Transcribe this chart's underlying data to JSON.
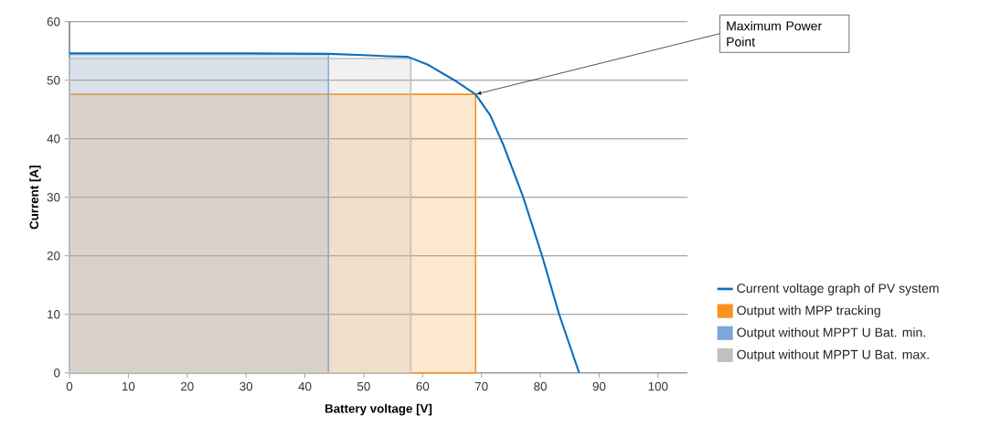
{
  "chart_data": {
    "type": "line",
    "xlabel": "Battery voltage [V]",
    "ylabel": "Current [A]",
    "xlim": [
      0,
      105
    ],
    "ylim": [
      0,
      60
    ],
    "xticks": [
      0,
      10,
      20,
      30,
      40,
      50,
      60,
      70,
      80,
      90,
      100
    ],
    "yticks": [
      0,
      10,
      20,
      30,
      40,
      50,
      60
    ],
    "grid": "y",
    "legend": "right",
    "annotations": [
      {
        "text": "Maximum Power Point",
        "x": 69,
        "y": 47.6
      }
    ],
    "series": [
      {
        "name": "Current voltage graph of PV system",
        "color": "#0a6ebd",
        "x": [
          0,
          30,
          44,
          50,
          54,
          57.5,
          61,
          65.4,
          69,
          71.5,
          73.7,
          77.1,
          80.3,
          83.2,
          86.6
        ],
        "values": [
          54.6,
          54.6,
          54.5,
          54.3,
          54.1,
          54.0,
          52.6,
          50,
          47.6,
          44,
          39,
          30,
          20,
          10,
          0
        ]
      },
      {
        "name": "Output with MPP tracking",
        "type": "area",
        "color": "#f7931e",
        "x": [
          0,
          69
        ],
        "values": [
          47.6,
          47.6
        ]
      },
      {
        "name": "Output without MPPT U Bat. min.",
        "type": "area",
        "color": "#7ea6d8",
        "x": [
          0,
          44
        ],
        "values": [
          54.4,
          54.4
        ]
      },
      {
        "name": "Output without MPPT U Bat. max.",
        "type": "area",
        "color": "#c0c0c0",
        "x": [
          0,
          58
        ],
        "values": [
          53.7,
          53.7
        ]
      }
    ]
  }
}
